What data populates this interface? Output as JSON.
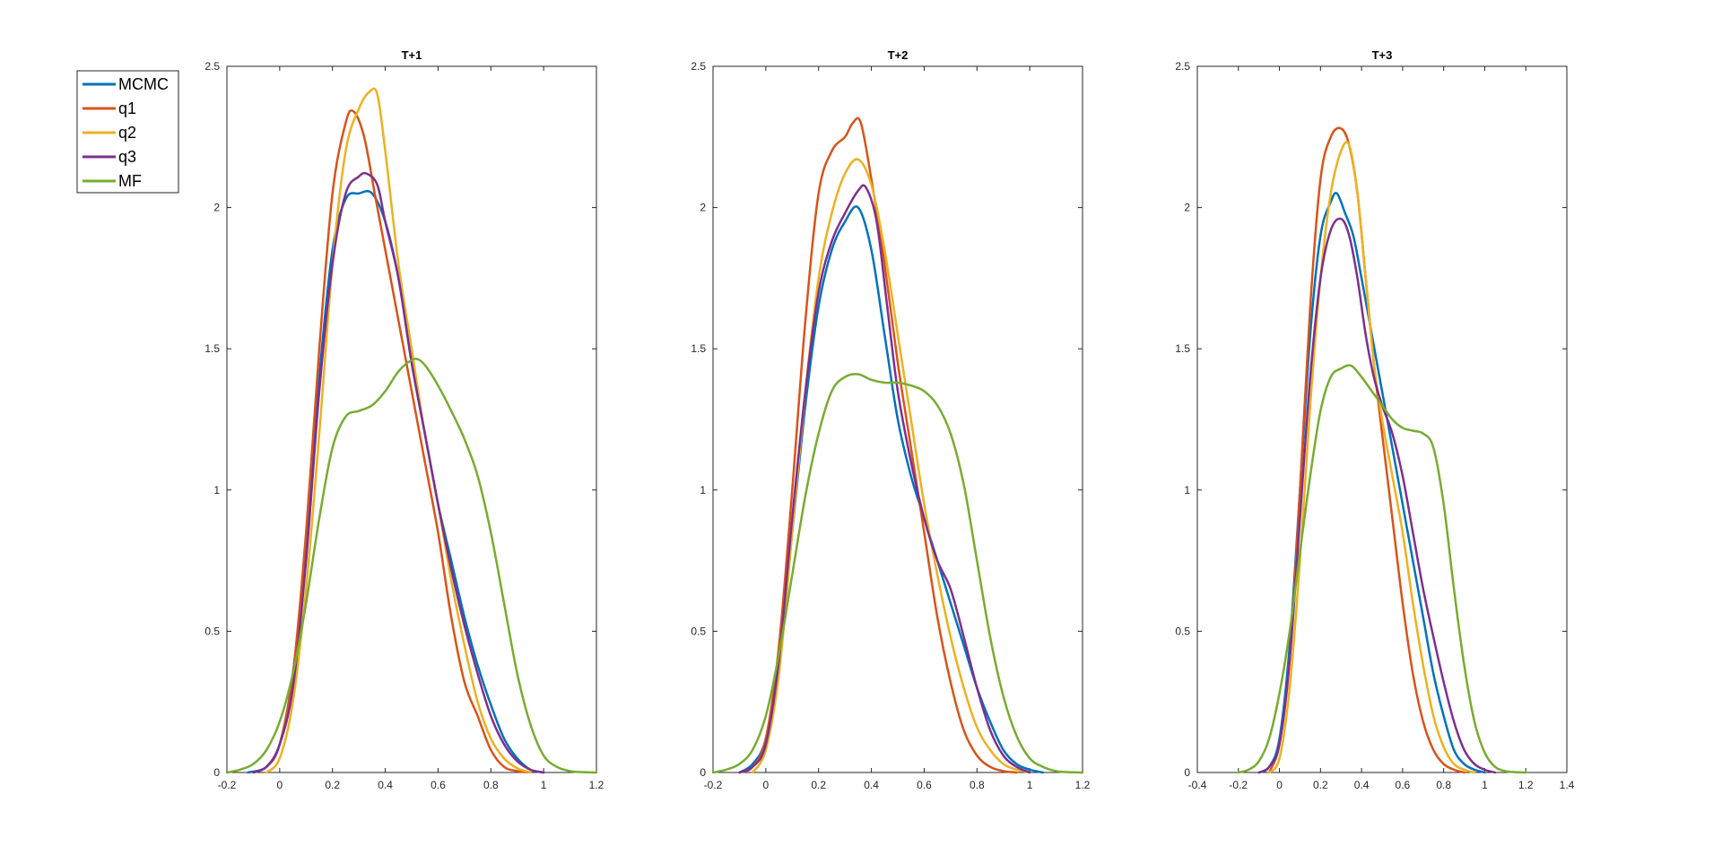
{
  "legend": {
    "placement": "outside-left-top",
    "entries": [
      {
        "name": "MCMC",
        "color": "#0072BD"
      },
      {
        "name": "q1",
        "color": "#D95319"
      },
      {
        "name": "q2",
        "color": "#EDB120"
      },
      {
        "name": "q3",
        "color": "#7E2F8E"
      },
      {
        "name": "MF",
        "color": "#77AC30"
      }
    ]
  },
  "chart_data": [
    {
      "type": "line",
      "title": "T+1",
      "xlabel": "",
      "ylabel": "",
      "xlim": [
        -0.2,
        1.2
      ],
      "ylim": [
        0,
        2.5
      ],
      "xticks": [
        "-0.2",
        "0",
        "0.2",
        "0.4",
        "0.6",
        "0.8",
        "1",
        "1.2"
      ],
      "yticks": [
        "0",
        "0.5",
        "1",
        "1.5",
        "2",
        "2.5"
      ],
      "grid": false,
      "series": [
        {
          "name": "MCMC",
          "color": "#0072BD",
          "x": [
            -0.12,
            -0.05,
            0,
            0.05,
            0.1,
            0.15,
            0.2,
            0.25,
            0.3,
            0.35,
            0.4,
            0.45,
            0.5,
            0.55,
            0.6,
            0.65,
            0.7,
            0.75,
            0.8,
            0.85,
            0.9,
            0.95,
            1.0
          ],
          "y": [
            0,
            0.02,
            0.1,
            0.35,
            0.8,
            1.4,
            1.85,
            2.03,
            2.05,
            2.05,
            1.95,
            1.75,
            1.45,
            1.2,
            0.95,
            0.75,
            0.55,
            0.38,
            0.24,
            0.12,
            0.05,
            0.01,
            0
          ]
        },
        {
          "name": "q1",
          "color": "#D95319",
          "x": [
            -0.1,
            -0.05,
            0,
            0.05,
            0.1,
            0.15,
            0.2,
            0.25,
            0.28,
            0.32,
            0.36,
            0.4,
            0.45,
            0.5,
            0.55,
            0.6,
            0.65,
            0.7,
            0.75,
            0.8,
            0.85,
            0.9,
            0.95
          ],
          "y": [
            0,
            0.02,
            0.1,
            0.35,
            0.85,
            1.5,
            2.05,
            2.3,
            2.34,
            2.25,
            2.05,
            1.85,
            1.6,
            1.35,
            1.1,
            0.85,
            0.55,
            0.32,
            0.2,
            0.08,
            0.02,
            0.005,
            0
          ]
        },
        {
          "name": "q2",
          "color": "#EDB120",
          "x": [
            -0.05,
            0,
            0.05,
            0.1,
            0.15,
            0.2,
            0.25,
            0.3,
            0.34,
            0.37,
            0.4,
            0.45,
            0.5,
            0.55,
            0.6,
            0.65,
            0.7,
            0.75,
            0.8,
            0.85,
            0.9,
            0.95
          ],
          "y": [
            0,
            0.05,
            0.25,
            0.65,
            1.2,
            1.8,
            2.2,
            2.35,
            2.41,
            2.4,
            2.2,
            1.8,
            1.5,
            1.2,
            0.95,
            0.68,
            0.45,
            0.25,
            0.12,
            0.05,
            0.015,
            0
          ]
        },
        {
          "name": "q3",
          "color": "#7E2F8E",
          "x": [
            -0.1,
            -0.05,
            0,
            0.05,
            0.1,
            0.15,
            0.2,
            0.25,
            0.3,
            0.33,
            0.37,
            0.4,
            0.45,
            0.5,
            0.55,
            0.6,
            0.65,
            0.7,
            0.75,
            0.8,
            0.85,
            0.9,
            0.95,
            1.0
          ],
          "y": [
            0,
            0.02,
            0.1,
            0.3,
            0.75,
            1.35,
            1.8,
            2.05,
            2.11,
            2.12,
            2.08,
            1.95,
            1.75,
            1.45,
            1.2,
            0.95,
            0.72,
            0.52,
            0.35,
            0.2,
            0.1,
            0.04,
            0.01,
            0
          ]
        },
        {
          "name": "MF",
          "color": "#77AC30",
          "x": [
            -0.2,
            -0.15,
            -0.1,
            -0.05,
            0,
            0.05,
            0.1,
            0.15,
            0.2,
            0.25,
            0.3,
            0.35,
            0.4,
            0.45,
            0.5,
            0.53,
            0.56,
            0.6,
            0.65,
            0.7,
            0.75,
            0.8,
            0.85,
            0.9,
            0.95,
            1.0,
            1.05,
            1.1,
            1.15,
            1.2
          ],
          "y": [
            0,
            0.01,
            0.03,
            0.08,
            0.18,
            0.35,
            0.6,
            0.9,
            1.15,
            1.26,
            1.28,
            1.3,
            1.35,
            1.42,
            1.46,
            1.46,
            1.43,
            1.37,
            1.28,
            1.18,
            1.05,
            0.85,
            0.6,
            0.35,
            0.17,
            0.06,
            0.02,
            0.005,
            0.001,
            0
          ]
        }
      ]
    },
    {
      "type": "line",
      "title": "T+2",
      "xlabel": "",
      "ylabel": "",
      "xlim": [
        -0.2,
        1.2
      ],
      "ylim": [
        0,
        2.5
      ],
      "xticks": [
        "-0.2",
        "0",
        "0.2",
        "0.4",
        "0.6",
        "0.8",
        "1",
        "1.2"
      ],
      "yticks": [
        "0",
        "0.5",
        "1",
        "1.5",
        "2",
        "2.5"
      ],
      "grid": false,
      "series": [
        {
          "name": "MCMC",
          "color": "#0072BD",
          "x": [
            -0.1,
            -0.05,
            0,
            0.05,
            0.1,
            0.15,
            0.2,
            0.25,
            0.3,
            0.35,
            0.4,
            0.45,
            0.5,
            0.55,
            0.6,
            0.65,
            0.7,
            0.75,
            0.8,
            0.85,
            0.9,
            0.95,
            1.0,
            1.05
          ],
          "y": [
            0,
            0.03,
            0.12,
            0.4,
            0.85,
            1.3,
            1.65,
            1.85,
            1.95,
            2.0,
            1.85,
            1.55,
            1.25,
            1.05,
            0.9,
            0.75,
            0.6,
            0.45,
            0.3,
            0.18,
            0.08,
            0.03,
            0.01,
            0
          ]
        },
        {
          "name": "q1",
          "color": "#D95319",
          "x": [
            -0.1,
            -0.05,
            0,
            0.05,
            0.1,
            0.15,
            0.2,
            0.25,
            0.3,
            0.33,
            0.36,
            0.4,
            0.45,
            0.5,
            0.55,
            0.6,
            0.65,
            0.7,
            0.75,
            0.8,
            0.85,
            0.9,
            0.95
          ],
          "y": [
            0,
            0.02,
            0.12,
            0.45,
            1.0,
            1.6,
            2.05,
            2.2,
            2.25,
            2.3,
            2.3,
            2.1,
            1.8,
            1.45,
            1.15,
            0.85,
            0.55,
            0.32,
            0.15,
            0.06,
            0.02,
            0.005,
            0
          ]
        },
        {
          "name": "q2",
          "color": "#EDB120",
          "x": [
            -0.05,
            0,
            0.05,
            0.1,
            0.15,
            0.2,
            0.25,
            0.3,
            0.35,
            0.4,
            0.45,
            0.5,
            0.55,
            0.6,
            0.65,
            0.7,
            0.75,
            0.8,
            0.85,
            0.9,
            0.95,
            1.0
          ],
          "y": [
            0,
            0.08,
            0.35,
            0.85,
            1.35,
            1.75,
            1.98,
            2.12,
            2.17,
            2.08,
            1.85,
            1.55,
            1.25,
            0.95,
            0.7,
            0.48,
            0.3,
            0.16,
            0.08,
            0.03,
            0.01,
            0
          ]
        },
        {
          "name": "q3",
          "color": "#7E2F8E",
          "x": [
            -0.1,
            -0.05,
            0,
            0.05,
            0.1,
            0.15,
            0.2,
            0.25,
            0.3,
            0.35,
            0.38,
            0.42,
            0.46,
            0.5,
            0.55,
            0.6,
            0.65,
            0.7,
            0.75,
            0.8,
            0.85,
            0.9,
            0.95,
            1.0
          ],
          "y": [
            0,
            0.02,
            0.1,
            0.4,
            0.9,
            1.35,
            1.7,
            1.88,
            1.98,
            2.06,
            2.07,
            1.95,
            1.65,
            1.35,
            1.1,
            0.9,
            0.75,
            0.65,
            0.48,
            0.3,
            0.15,
            0.06,
            0.02,
            0
          ]
        },
        {
          "name": "MF",
          "color": "#77AC30",
          "x": [
            -0.2,
            -0.15,
            -0.1,
            -0.05,
            0,
            0.05,
            0.1,
            0.15,
            0.2,
            0.25,
            0.3,
            0.35,
            0.4,
            0.45,
            0.5,
            0.55,
            0.6,
            0.65,
            0.7,
            0.75,
            0.8,
            0.85,
            0.9,
            0.95,
            1.0,
            1.05,
            1.1,
            1.15,
            1.2
          ],
          "y": [
            0,
            0.01,
            0.03,
            0.08,
            0.2,
            0.42,
            0.7,
            0.98,
            1.2,
            1.35,
            1.4,
            1.41,
            1.39,
            1.38,
            1.38,
            1.37,
            1.35,
            1.3,
            1.2,
            1.02,
            0.75,
            0.48,
            0.27,
            0.13,
            0.05,
            0.02,
            0.005,
            0.001,
            0
          ]
        }
      ]
    },
    {
      "type": "line",
      "title": "T+3",
      "xlabel": "",
      "ylabel": "",
      "xlim": [
        -0.4,
        1.4
      ],
      "ylim": [
        0,
        2.5
      ],
      "xticks": [
        "-0.4",
        "-0.2",
        "0",
        "0.2",
        "0.4",
        "0.6",
        "0.8",
        "1",
        "1.2",
        "1.4"
      ],
      "yticks": [
        "0",
        "0.5",
        "1",
        "1.5",
        "2",
        "2.5"
      ],
      "grid": false,
      "series": [
        {
          "name": "MCMC",
          "color": "#0072BD",
          "x": [
            -0.1,
            -0.05,
            0,
            0.05,
            0.1,
            0.15,
            0.2,
            0.25,
            0.28,
            0.32,
            0.36,
            0.4,
            0.45,
            0.5,
            0.55,
            0.6,
            0.65,
            0.7,
            0.75,
            0.8,
            0.85,
            0.9,
            0.95,
            1.0
          ],
          "y": [
            0,
            0.02,
            0.12,
            0.45,
            1.0,
            1.55,
            1.9,
            2.02,
            2.05,
            1.98,
            1.9,
            1.75,
            1.55,
            1.35,
            1.15,
            0.95,
            0.75,
            0.55,
            0.35,
            0.2,
            0.08,
            0.03,
            0.01,
            0
          ]
        },
        {
          "name": "q1",
          "color": "#D95319",
          "x": [
            -0.05,
            0,
            0.05,
            0.1,
            0.15,
            0.2,
            0.25,
            0.3,
            0.34,
            0.38,
            0.42,
            0.46,
            0.5,
            0.55,
            0.6,
            0.65,
            0.7,
            0.75,
            0.8,
            0.85,
            0.9
          ],
          "y": [
            0,
            0.1,
            0.4,
            1.0,
            1.65,
            2.1,
            2.25,
            2.28,
            2.22,
            2.05,
            1.75,
            1.45,
            1.2,
            0.9,
            0.6,
            0.35,
            0.18,
            0.08,
            0.03,
            0.01,
            0
          ]
        },
        {
          "name": "q2",
          "color": "#EDB120",
          "x": [
            -0.05,
            0,
            0.05,
            0.1,
            0.15,
            0.2,
            0.25,
            0.3,
            0.34,
            0.38,
            0.42,
            0.46,
            0.5,
            0.55,
            0.6,
            0.65,
            0.7,
            0.75,
            0.8,
            0.85,
            0.9,
            0.95
          ],
          "y": [
            0,
            0.05,
            0.3,
            0.75,
            1.3,
            1.75,
            2.05,
            2.2,
            2.22,
            2.05,
            1.75,
            1.45,
            1.25,
            1.05,
            0.85,
            0.6,
            0.38,
            0.2,
            0.09,
            0.03,
            0.01,
            0
          ]
        },
        {
          "name": "q3",
          "color": "#7E2F8E",
          "x": [
            -0.1,
            -0.05,
            0,
            0.05,
            0.1,
            0.15,
            0.2,
            0.25,
            0.3,
            0.34,
            0.38,
            0.42,
            0.46,
            0.5,
            0.55,
            0.6,
            0.65,
            0.7,
            0.75,
            0.8,
            0.85,
            0.9,
            0.95,
            1.0,
            1.05
          ],
          "y": [
            0,
            0.02,
            0.1,
            0.4,
            0.9,
            1.4,
            1.75,
            1.92,
            1.96,
            1.9,
            1.75,
            1.55,
            1.4,
            1.3,
            1.2,
            1.05,
            0.85,
            0.65,
            0.48,
            0.32,
            0.18,
            0.08,
            0.03,
            0.01,
            0
          ]
        },
        {
          "name": "MF",
          "color": "#77AC30",
          "x": [
            -0.2,
            -0.15,
            -0.1,
            -0.05,
            0,
            0.05,
            0.1,
            0.15,
            0.2,
            0.25,
            0.3,
            0.35,
            0.4,
            0.45,
            0.5,
            0.55,
            0.6,
            0.65,
            0.7,
            0.75,
            0.8,
            0.85,
            0.9,
            0.95,
            1.0,
            1.05,
            1.1,
            1.15,
            1.2
          ],
          "y": [
            0,
            0.01,
            0.04,
            0.12,
            0.28,
            0.5,
            0.78,
            1.05,
            1.28,
            1.4,
            1.43,
            1.44,
            1.4,
            1.35,
            1.3,
            1.25,
            1.22,
            1.21,
            1.2,
            1.15,
            0.95,
            0.65,
            0.38,
            0.18,
            0.07,
            0.02,
            0.005,
            0.001,
            0
          ]
        }
      ]
    }
  ]
}
